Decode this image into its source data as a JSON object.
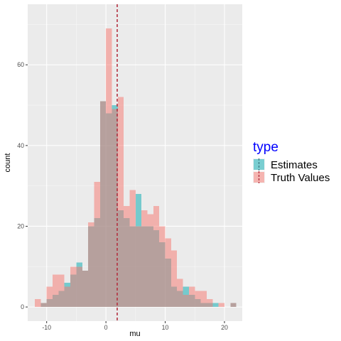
{
  "chart_data": {
    "type": "bar",
    "subtype": "overlaid histogram",
    "xlabel": "mu",
    "ylabel": "count",
    "xlim": [
      -13.2,
      23.0
    ],
    "ylim": [
      -3.5,
      75.0
    ],
    "bin_width": 1.0,
    "bin_start": -12.0,
    "x_ticks": [
      -10,
      0,
      10,
      20
    ],
    "y_ticks": [
      0,
      20,
      40,
      60
    ],
    "x_tick_labels": [
      "-10",
      "0",
      "10",
      "20"
    ],
    "y_tick_labels": [
      "0",
      "20",
      "40",
      "60"
    ],
    "vline_x": 1.9,
    "grid": true,
    "legend": {
      "title": "type",
      "title_color": "#0000ff",
      "position": "right",
      "entries": [
        "Estimates",
        "Truth Values"
      ]
    },
    "series": [
      {
        "name": "Estimates",
        "color": "#00a9b0",
        "counts": [
          0,
          1,
          2,
          3,
          4,
          6,
          8,
          11,
          9,
          20,
          22,
          51,
          48,
          50,
          24,
          22,
          20,
          28,
          20,
          20,
          19,
          16,
          12,
          5,
          4,
          5,
          3,
          2,
          1,
          1,
          1,
          0,
          0,
          1
        ]
      },
      {
        "name": "Truth Values",
        "color": "#f8766d",
        "counts": [
          2,
          1,
          5,
          8,
          8,
          5,
          10,
          10,
          9,
          21,
          31,
          51,
          69,
          49,
          52,
          25,
          29,
          20,
          24,
          23,
          25,
          20,
          17,
          14,
          7,
          3,
          5,
          4,
          4,
          2,
          0,
          1,
          0,
          1
        ]
      }
    ]
  }
}
